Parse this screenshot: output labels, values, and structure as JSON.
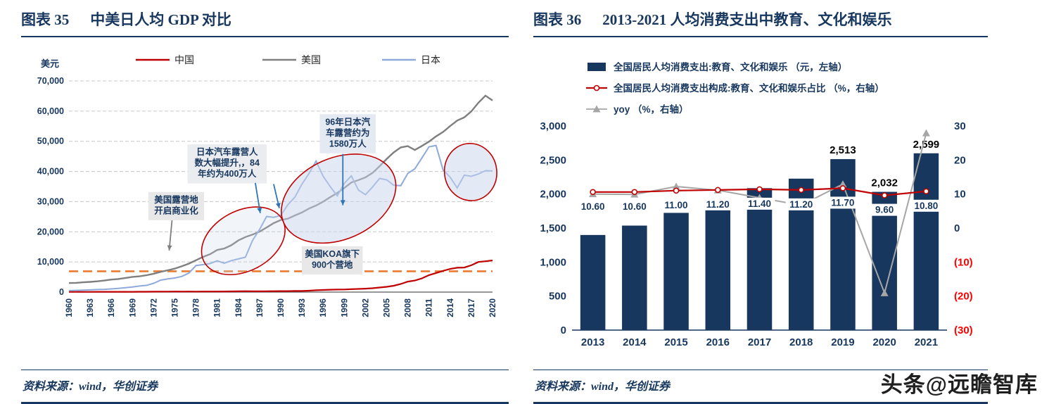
{
  "watermark": "头条@远瞻智库",
  "left_panel": {
    "figure_label": "图表 35",
    "title": "中美日人均 GDP 对比",
    "source": "资料来源：wind，华创证券"
  },
  "right_panel": {
    "figure_label": "图表 36",
    "title": "2013-2021 人均消费支出中教育、文化和娱乐",
    "source": "资料来源：wind，华创证券"
  },
  "chart_data": [
    {
      "type": "line",
      "title": "中美日人均 GDP 对比",
      "unit_label": "美元",
      "x_start": 1960,
      "x_end": 2020,
      "x_tick_step": 3,
      "ylim": [
        0,
        70000
      ],
      "y_ticks": [
        0,
        10000,
        20000,
        30000,
        40000,
        50000,
        60000,
        70000
      ],
      "series": [
        {
          "name": "中国",
          "color": "#C00000",
          "width": 2.2,
          "values": [
            90,
            76,
            71,
            74,
            85,
            98,
            104,
            97,
            91,
            100,
            113,
            119,
            132,
            157,
            160,
            178,
            165,
            185,
            156,
            184,
            195,
            197,
            203,
            225,
            251,
            294,
            282,
            252,
            284,
            311,
            318,
            333,
            366,
            377,
            473,
            610,
            709,
            782,
            829,
            873,
            959,
            1053,
            1149,
            1289,
            1509,
            1753,
            2099,
            2694,
            3468,
            3832,
            4550,
            5618,
            6317,
            7051,
            7679,
            8067,
            8148,
            8879,
            9977,
            10217,
            10500
          ]
        },
        {
          "name": "美国",
          "color": "#7F7F7F",
          "width": 2.4,
          "values": [
            3007,
            3067,
            3244,
            3375,
            3574,
            3828,
            4146,
            4336,
            4696,
            5032,
            5234,
            5609,
            6094,
            6726,
            7226,
            7801,
            8592,
            9453,
            10565,
            11674,
            12575,
            13976,
            14434,
            15544,
            17121,
            18237,
            19071,
            20039,
            21417,
            22857,
            23889,
            24342,
            25419,
            26387,
            27695,
            28691,
            29968,
            31459,
            32854,
            34515,
            36330,
            37134,
            38023,
            39496,
            41713,
            44115,
            46299,
            47976,
            48383,
            47100,
            48468,
            49883,
            51603,
            53107,
            55050,
            56863,
            57928,
            59908,
            62770,
            65120,
            63528
          ]
        },
        {
          "name": "日本",
          "color": "#8EA9DB",
          "width": 2.0,
          "values": [
            479,
            564,
            634,
            718,
            836,
            920,
            1058,
            1229,
            1451,
            1669,
            2008,
            2234,
            2917,
            3975,
            4354,
            4659,
            5197,
            6335,
            8821,
            9106,
            9465,
            10361,
            9578,
            10425,
            10985,
            11585,
            17112,
            20745,
            25059,
            24813,
            25371,
            28925,
            31465,
            35766,
            39269,
            43440,
            38437,
            35022,
            31903,
            36027,
            38532,
            33846,
            32289,
            34808,
            37688,
            37217,
            35433,
            35275,
            39339,
            40855,
            44508,
            48168,
            48603,
            40454,
            38109,
            34524,
            38762,
            38387,
            39159,
            40247,
            40146
          ]
        }
      ],
      "reference_line": {
        "value": 6900,
        "color": "#E97C30"
      },
      "annotations": [
        {
          "text": "美国露营地\n开启商业化",
          "x": 1975.2,
          "y": 28500,
          "fill": "#E8E8E8"
        },
        {
          "text": "日本汽车露营人\n数大幅提升,，84\n年约为400万人",
          "x": 1982.4,
          "y": 42500,
          "fill": "#EAECEF"
        },
        {
          "text": "96年日本汽\n车露营约为\n1580万人",
          "x": 1999.5,
          "y": 52500,
          "fill": "#E4E9F2"
        },
        {
          "text": "美国KOA旗下\n900个营地",
          "x": 1997.3,
          "y": 10500,
          "fill": "#E8E8E8"
        }
      ],
      "arrows": [
        {
          "x1": 1974.6,
          "y1": 23800,
          "x2": 1974.2,
          "y2": 13800,
          "color": "#7F7F7F"
        },
        {
          "x1": 1986.4,
          "y1": 36200,
          "x2": 1987.1,
          "y2": 26200,
          "color": "#2E75B6"
        },
        {
          "x1": 1989.0,
          "y1": 35800,
          "x2": 1989.8,
          "y2": 27800,
          "color": "#2E75B6"
        },
        {
          "x1": 1998.8,
          "y1": 45800,
          "x2": 1998.8,
          "y2": 28800,
          "color": "#2E75B6"
        }
      ],
      "ellipses": [
        {
          "cx": 1984.7,
          "cy": 17000,
          "rx_years": 6.3,
          "ry_value": 10000,
          "rotate": -28,
          "fill": "#C9D6EC",
          "fill_opacity": 0.25
        },
        {
          "cx": 1998.2,
          "cy": 31000,
          "rx_years": 8.5,
          "ry_value": 13500,
          "rotate": -24,
          "fill": "#C9D6EC",
          "fill_opacity": 0.5
        },
        {
          "cx": 2016.9,
          "cy": 39800,
          "rx_years": 3.7,
          "ry_value": 9500,
          "rotate": -8,
          "fill": "#C9D6EC",
          "fill_opacity": 0.5
        }
      ]
    },
    {
      "type": "bar-line",
      "title": "2013-2021 人均消费支出中教育、文化和娱乐",
      "categories": [
        "2013",
        "2014",
        "2015",
        "2016",
        "2017",
        "2018",
        "2019",
        "2020",
        "2021"
      ],
      "ylim_left": [
        0,
        3000
      ],
      "ylim_right": [
        -30,
        30
      ],
      "y_ticks_left": [
        0,
        500,
        1000,
        1500,
        2000,
        2500,
        3000
      ],
      "y_ticks_right": [
        30,
        20,
        10,
        0,
        -10,
        -20,
        -30
      ],
      "negative_tick_color": "#FF0000",
      "bars": {
        "name": "全国居民人均消费支出:教育、文化和娱乐 （元，左轴）",
        "color": "#17375E",
        "values": [
          1398,
          1536,
          1723,
          1915,
          2086,
          2226,
          2513,
          2032,
          2599
        ],
        "labels": [
          null,
          null,
          null,
          null,
          null,
          null,
          "2,513",
          "2,032",
          "2,599"
        ]
      },
      "ratio": {
        "name": "全国居民人均消费支出构成:教育、文化和娱乐占比 （%，右轴）",
        "color": "#C00000",
        "values": [
          10.6,
          10.6,
          11.0,
          11.2,
          11.4,
          11.2,
          11.7,
          9.6,
          10.8
        ]
      },
      "yoy": {
        "name": "yoy （%，右轴）",
        "color": "#A6A6A6",
        "values": [
          10.0,
          9.9,
          12.2,
          11.1,
          8.9,
          6.7,
          12.9,
          -19.1,
          27.9
        ]
      },
      "legend": [
        {
          "type": "bar",
          "color": "#17375E",
          "label": "全国居民人均消费支出:教育、文化和娱乐 （元，左轴）"
        },
        {
          "type": "line-circle",
          "color": "#C00000",
          "label": "全国居民人均消费支出构成:教育、文化和娱乐占比 （%，右轴）"
        },
        {
          "type": "line-triangle",
          "color": "#A6A6A6",
          "label": "yoy （%，右轴）"
        }
      ]
    }
  ]
}
